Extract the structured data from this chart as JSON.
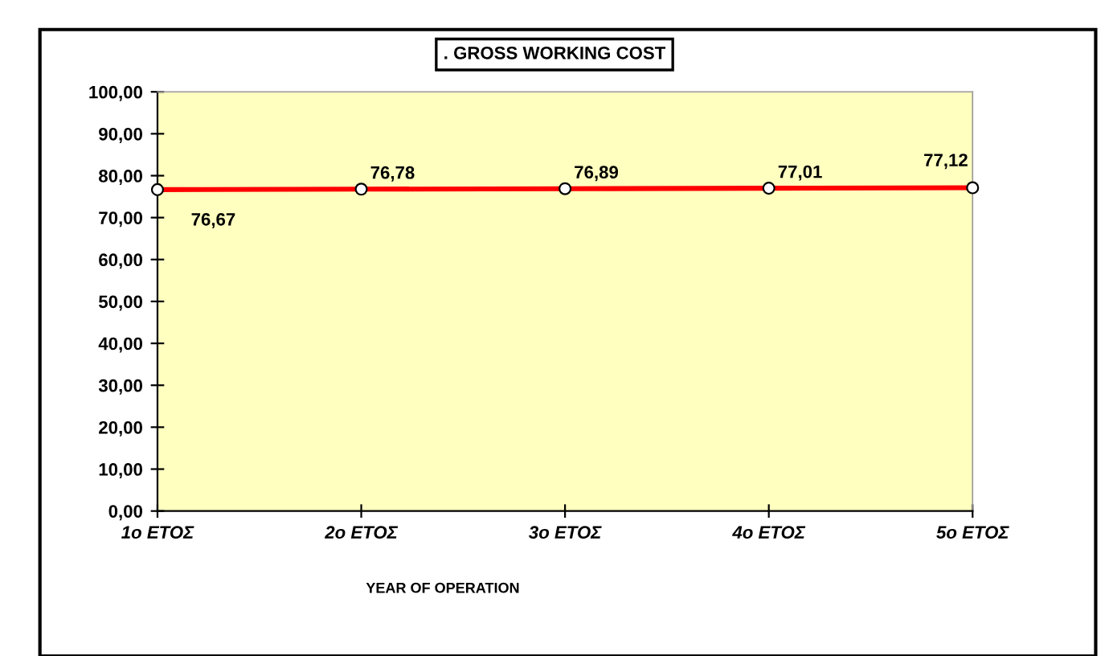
{
  "chart_data": {
    "type": "line",
    "title": ". GROSS WORKING COST",
    "xlabel": "YEAR OF OPERATION",
    "categories": [
      "1o ΕΤΟΣ",
      "2o ΕΤΟΣ",
      "3o ΕΤΟΣ",
      "4o ΕΤΟΣ",
      "5o ΕΤΟΣ"
    ],
    "series": [
      {
        "color": "#ff0000",
        "values": [
          76.67,
          76.78,
          76.89,
          77.01,
          77.12
        ],
        "value_labels": [
          "76,67",
          "76,78",
          "76,89",
          "77,01",
          "77,12"
        ]
      }
    ],
    "ylim": [
      0,
      100
    ],
    "yticks": [
      {
        "value": 0,
        "label": "0,00"
      },
      {
        "value": 10,
        "label": "10,00"
      },
      {
        "value": 20,
        "label": "20,00"
      },
      {
        "value": 30,
        "label": "30,00"
      },
      {
        "value": 40,
        "label": "40,00"
      },
      {
        "value": 50,
        "label": "50,00"
      },
      {
        "value": 60,
        "label": "60,00"
      },
      {
        "value": 70,
        "label": "70,00"
      },
      {
        "value": 80,
        "label": "80,00"
      },
      {
        "value": 90,
        "label": "90,00"
      },
      {
        "value": 100,
        "label": "100,00"
      }
    ],
    "marker": "circle",
    "line_style": "solid",
    "grid": false,
    "legend": false
  }
}
